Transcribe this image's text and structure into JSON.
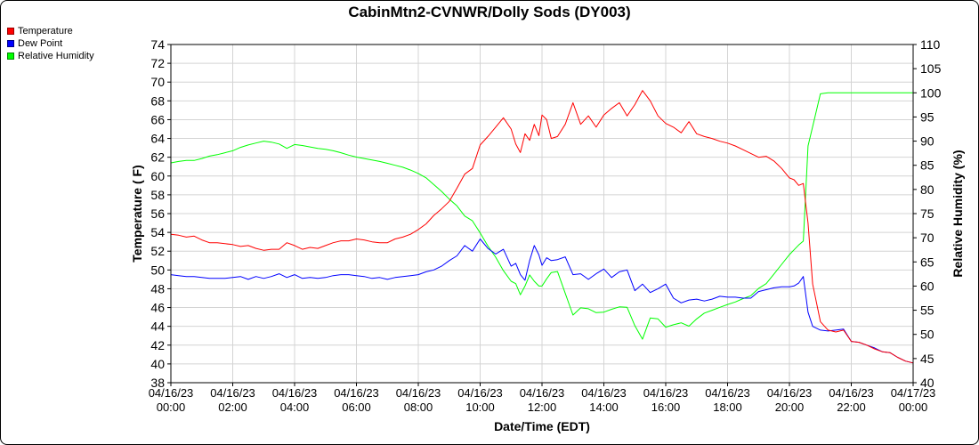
{
  "chart_data": {
    "type": "line",
    "title": "CabinMtn2-CVNWR/Dolly Sods (DY003)",
    "xlabel": "Date/Time (EDT)",
    "ylabel": "Temperature ( F)",
    "y2label": "Relative Humidity (%)",
    "ylim": [
      38,
      74
    ],
    "y2lim": [
      40,
      110
    ],
    "yticks": [
      "38",
      "40",
      "42",
      "44",
      "46",
      "48",
      "50",
      "52",
      "54",
      "56",
      "58",
      "60",
      "62",
      "64",
      "66",
      "68",
      "70",
      "72",
      "74"
    ],
    "y2ticks": [
      "40",
      "45",
      "50",
      "55",
      "60",
      "65",
      "70",
      "75",
      "80",
      "85",
      "90",
      "95",
      "100",
      "105",
      "110"
    ],
    "xlim": [
      0,
      24
    ],
    "xticks": [
      {
        "date": "04/16/23",
        "time": "00:00"
      },
      {
        "date": "04/16/23",
        "time": "02:00"
      },
      {
        "date": "04/16/23",
        "time": "04:00"
      },
      {
        "date": "04/16/23",
        "time": "06:00"
      },
      {
        "date": "04/16/23",
        "time": "08:00"
      },
      {
        "date": "04/16/23",
        "time": "10:00"
      },
      {
        "date": "04/16/23",
        "time": "12:00"
      },
      {
        "date": "04/16/23",
        "time": "14:00"
      },
      {
        "date": "04/16/23",
        "time": "16:00"
      },
      {
        "date": "04/16/23",
        "time": "18:00"
      },
      {
        "date": "04/16/23",
        "time": "20:00"
      },
      {
        "date": "04/16/23",
        "time": "22:00"
      },
      {
        "date": "04/17/23",
        "time": "00:00"
      }
    ],
    "grid": true,
    "legend_position": "top-left",
    "series": [
      {
        "name": "Temperature",
        "color": "#ff0000",
        "axis": "left",
        "x": [
          0,
          0.25,
          0.5,
          0.75,
          1,
          1.25,
          1.5,
          1.75,
          2,
          2.25,
          2.5,
          2.75,
          3,
          3.25,
          3.5,
          3.75,
          4,
          4.25,
          4.5,
          4.75,
          5,
          5.25,
          5.5,
          5.75,
          6,
          6.25,
          6.5,
          6.75,
          7,
          7.25,
          7.5,
          7.75,
          8,
          8.25,
          8.5,
          8.75,
          9,
          9.25,
          9.5,
          9.75,
          10,
          10.25,
          10.5,
          10.75,
          11,
          11.15,
          11.3,
          11.45,
          11.6,
          11.75,
          11.9,
          12,
          12.15,
          12.3,
          12.5,
          12.75,
          13,
          13.25,
          13.5,
          13.75,
          14,
          14.25,
          14.5,
          14.75,
          15,
          15.25,
          15.5,
          15.75,
          16,
          16.25,
          16.5,
          16.75,
          17,
          17.25,
          17.5,
          17.75,
          18,
          18.25,
          18.5,
          18.75,
          19,
          19.25,
          19.5,
          19.75,
          20,
          20.15,
          20.3,
          20.45,
          20.6,
          20.75,
          21,
          21.25,
          21.5,
          21.75,
          22,
          22.25,
          22.5,
          22.75,
          23,
          23.25,
          23.5,
          23.75,
          24
        ],
        "values": [
          53.8,
          53.7,
          53.5,
          53.6,
          53.2,
          52.9,
          52.9,
          52.8,
          52.7,
          52.5,
          52.6,
          52.3,
          52.1,
          52.2,
          52.2,
          52.9,
          52.6,
          52.2,
          52.4,
          52.3,
          52.6,
          52.9,
          53.1,
          53.1,
          53.3,
          53.2,
          53.0,
          52.9,
          52.9,
          53.3,
          53.5,
          53.8,
          54.3,
          54.9,
          55.8,
          56.5,
          57.3,
          58.7,
          60.2,
          60.8,
          63.3,
          64.2,
          65.2,
          66.2,
          65.0,
          63.4,
          62.5,
          64.5,
          63.8,
          65.5,
          64.3,
          66.5,
          66.0,
          64.0,
          64.2,
          65.5,
          67.8,
          65.5,
          66.4,
          65.2,
          66.5,
          67.2,
          67.8,
          66.4,
          67.6,
          69.1,
          68.0,
          66.4,
          65.6,
          65.2,
          64.6,
          65.8,
          64.5,
          64.2,
          64.0,
          63.7,
          63.5,
          63.2,
          62.8,
          62.4,
          62.0,
          62.1,
          61.6,
          60.8,
          59.8,
          59.6,
          59.0,
          59.2,
          55.0,
          48.5,
          44.5,
          43.6,
          43.4,
          43.6,
          42.4,
          42.3,
          42.0,
          41.6,
          41.3,
          41.2,
          40.7,
          40.3,
          40.1
        ]
      },
      {
        "name": "Dew Point",
        "color": "#0000ff",
        "axis": "left",
        "x": [
          0,
          0.25,
          0.5,
          0.75,
          1,
          1.25,
          1.5,
          1.75,
          2,
          2.25,
          2.5,
          2.75,
          3,
          3.25,
          3.5,
          3.75,
          4,
          4.25,
          4.5,
          4.75,
          5,
          5.25,
          5.5,
          5.75,
          6,
          6.25,
          6.5,
          6.75,
          7,
          7.25,
          7.5,
          7.75,
          8,
          8.25,
          8.5,
          8.75,
          9,
          9.25,
          9.5,
          9.75,
          10,
          10.25,
          10.5,
          10.75,
          11,
          11.15,
          11.3,
          11.45,
          11.6,
          11.75,
          11.9,
          12,
          12.15,
          12.3,
          12.5,
          12.75,
          13,
          13.25,
          13.5,
          13.75,
          14,
          14.25,
          14.5,
          14.75,
          15,
          15.25,
          15.5,
          15.75,
          16,
          16.25,
          16.5,
          16.75,
          17,
          17.25,
          17.5,
          17.75,
          18,
          18.25,
          18.5,
          18.75,
          19,
          19.25,
          19.5,
          19.75,
          20,
          20.15,
          20.3,
          20.45,
          20.6,
          20.75,
          21,
          21.25,
          21.5,
          21.75,
          22,
          22.25,
          22.5,
          22.75,
          23,
          23.25,
          23.5,
          23.75,
          24
        ],
        "values": [
          49.5,
          49.4,
          49.3,
          49.3,
          49.2,
          49.1,
          49.1,
          49.1,
          49.2,
          49.3,
          49.0,
          49.3,
          49.1,
          49.3,
          49.6,
          49.2,
          49.5,
          49.1,
          49.2,
          49.1,
          49.2,
          49.4,
          49.5,
          49.5,
          49.4,
          49.3,
          49.1,
          49.2,
          49.0,
          49.2,
          49.3,
          49.4,
          49.5,
          49.8,
          50.0,
          50.4,
          51.0,
          51.5,
          52.6,
          52.0,
          53.3,
          52.3,
          51.7,
          52.2,
          50.4,
          50.7,
          49.5,
          48.9,
          51.0,
          52.6,
          51.6,
          50.5,
          51.3,
          51.0,
          51.1,
          51.4,
          49.5,
          49.6,
          49.0,
          49.6,
          50.1,
          49.2,
          49.8,
          50.0,
          47.8,
          48.5,
          47.6,
          48.0,
          48.5,
          47.0,
          46.5,
          46.8,
          46.9,
          46.7,
          46.9,
          47.2,
          47.1,
          47.1,
          47.0,
          47.0,
          47.7,
          47.9,
          48.1,
          48.2,
          48.2,
          48.3,
          48.6,
          49.3,
          45.5,
          44.0,
          43.6,
          43.5,
          43.6,
          43.7,
          42.4,
          42.3,
          42.0,
          41.7,
          41.3,
          41.2,
          40.7,
          40.3,
          40.1
        ]
      },
      {
        "name": "Relative Humidity",
        "color": "#00ff00",
        "axis": "right",
        "x": [
          0,
          0.25,
          0.5,
          0.75,
          1,
          1.25,
          1.5,
          1.75,
          2,
          2.25,
          2.5,
          2.75,
          3,
          3.25,
          3.5,
          3.75,
          4,
          4.25,
          4.5,
          4.75,
          5,
          5.25,
          5.5,
          5.75,
          6,
          6.25,
          6.5,
          6.75,
          7,
          7.25,
          7.5,
          7.75,
          8,
          8.25,
          8.5,
          8.75,
          9,
          9.25,
          9.5,
          9.75,
          10,
          10.25,
          10.5,
          10.75,
          11,
          11.15,
          11.3,
          11.45,
          11.6,
          11.75,
          11.9,
          12,
          12.15,
          12.3,
          12.5,
          12.75,
          13,
          13.25,
          13.5,
          13.75,
          14,
          14.25,
          14.5,
          14.75,
          15,
          15.25,
          15.5,
          15.75,
          16,
          16.25,
          16.5,
          16.75,
          17,
          17.25,
          17.5,
          17.75,
          18,
          18.25,
          18.5,
          18.75,
          19,
          19.25,
          19.5,
          19.75,
          20,
          20.15,
          20.3,
          20.45,
          20.6,
          20.75,
          21,
          21.25,
          21.5,
          21.75,
          22,
          22.25,
          22.5,
          22.75,
          23,
          23.25,
          23.5,
          23.75,
          24
        ],
        "values": [
          85.5,
          85.8,
          86.0,
          86.0,
          86.4,
          86.9,
          87.2,
          87.6,
          88.0,
          88.7,
          89.2,
          89.6,
          90.0,
          89.8,
          89.4,
          88.5,
          89.3,
          89.1,
          88.8,
          88.5,
          88.3,
          88.0,
          87.6,
          87.1,
          86.7,
          86.4,
          86.1,
          85.8,
          85.4,
          85.0,
          84.6,
          84.0,
          83.3,
          82.4,
          81.0,
          79.6,
          78.0,
          76.6,
          74.5,
          73.5,
          71.0,
          68.3,
          66.0,
          63.2,
          61.0,
          60.5,
          58.2,
          60.0,
          62.3,
          61.0,
          60.0,
          60.0,
          61.5,
          62.8,
          63.0,
          58.5,
          54.0,
          55.5,
          55.3,
          54.5,
          54.6,
          55.2,
          55.7,
          55.6,
          51.8,
          49.0,
          53.4,
          53.2,
          51.5,
          52.0,
          52.4,
          51.7,
          53.2,
          54.4,
          55.0,
          55.6,
          56.2,
          56.7,
          57.4,
          58.0,
          59.5,
          60.5,
          62.5,
          64.5,
          66.5,
          67.5,
          68.5,
          69.3,
          89.0,
          93.0,
          99.8,
          100,
          100,
          100,
          100,
          100,
          100,
          100,
          100,
          100,
          100,
          100,
          100
        ]
      }
    ]
  }
}
